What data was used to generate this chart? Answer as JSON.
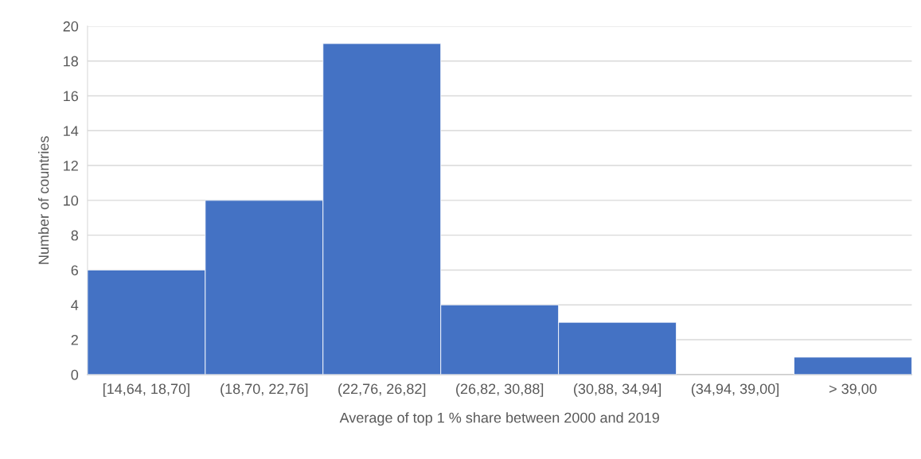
{
  "chart_data": {
    "type": "bar",
    "xlabel": "Average of top 1 % share between 2000 and 2019",
    "ylabel": "Number of countries",
    "categories": [
      "[14,64, 18,70]",
      "(18,70, 22,76]",
      "(22,76, 26,82]",
      "(26,82, 30,88]",
      "(30,88, 34,94]",
      "(34,94, 39,00]",
      "> 39,00"
    ],
    "values": [
      6,
      10,
      19,
      4,
      3,
      0,
      1
    ],
    "color": "#4472c4",
    "ylim": [
      0,
      20
    ],
    "yticks": [
      0,
      2,
      4,
      6,
      8,
      10,
      12,
      14,
      16,
      18,
      20
    ],
    "grid": "y"
  }
}
